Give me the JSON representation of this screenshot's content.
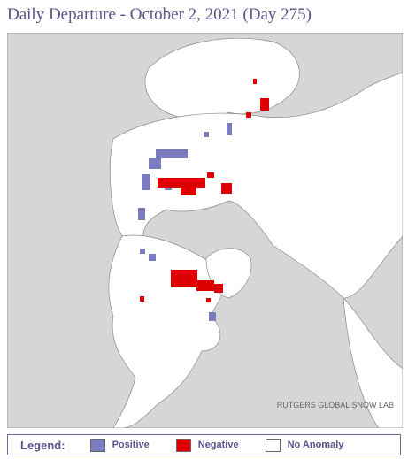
{
  "header": {
    "title": "Daily Departure - October 2, 2021 (Day 275)"
  },
  "map": {
    "credit": "RUTGERS GLOBAL SNOW LAB"
  },
  "legend": {
    "label": "Legend:",
    "items": [
      {
        "label": "Positive",
        "color": "#7b7bc0"
      },
      {
        "label": "Negative",
        "color": "#dd0000"
      },
      {
        "label": "No Anomaly",
        "color": "#ffffff"
      }
    ]
  }
}
